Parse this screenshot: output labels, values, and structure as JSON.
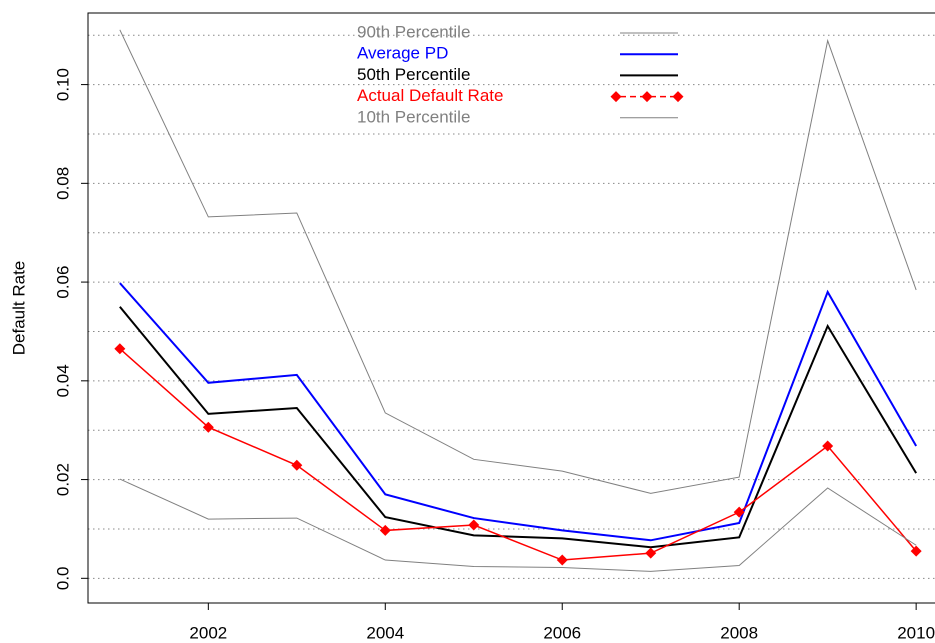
{
  "chart_data": {
    "type": "line",
    "y_label": "Default Rate",
    "x": [
      2001,
      2002,
      2003,
      2004,
      2005,
      2006,
      2007,
      2008,
      2009,
      2010
    ],
    "xlim": [
      2000.64,
      2010.36
    ],
    "xticks": [
      2002,
      2004,
      2006,
      2008,
      2010
    ],
    "ylim": [
      -0.005,
      0.1145
    ],
    "yticks": [
      {
        "value": 0,
        "label": "0.0"
      },
      0.02,
      0.04,
      0.06,
      0.08,
      {
        "value": 0.1,
        "label": "0.10"
      }
    ],
    "grid": true,
    "ygrid": [
      0,
      0.01,
      0.02,
      0.03,
      0.04,
      0.05,
      0.06,
      0.07,
      0.08,
      0.09,
      0.1,
      0.11
    ],
    "legend": "top",
    "series": [
      {
        "name": "90th Percentile",
        "color": "#808080",
        "values": [
          0.1111,
          0.0732,
          0.074,
          0.0335,
          0.0241,
          0.0217,
          0.0172,
          0.0205,
          0.1089,
          0.0584
        ]
      },
      {
        "name": "Average PD",
        "color": "#0000ff",
        "values": [
          0.0598,
          0.0396,
          0.0412,
          0.017,
          0.0122,
          0.0097,
          0.0077,
          0.0112,
          0.058,
          0.0268
        ]
      },
      {
        "name": "50th Percentile",
        "color": "#000000",
        "values": [
          0.055,
          0.0333,
          0.0345,
          0.0124,
          0.0087,
          0.0081,
          0.0063,
          0.0083,
          0.0511,
          0.0213
        ]
      },
      {
        "name": "Actual Default Rate",
        "color": "#ff0000",
        "markers": true,
        "values": [
          0.0465,
          0.0306,
          0.0229,
          0.0097,
          0.0108,
          0.0037,
          0.0051,
          0.0134,
          0.0268,
          0.0055
        ]
      },
      {
        "name": "10th Percentile",
        "color": "#808080",
        "values": [
          0.0201,
          0.012,
          0.0122,
          0.0037,
          0.0024,
          0.0022,
          0.0014,
          0.0026,
          0.0183,
          0.0067
        ]
      }
    ]
  }
}
